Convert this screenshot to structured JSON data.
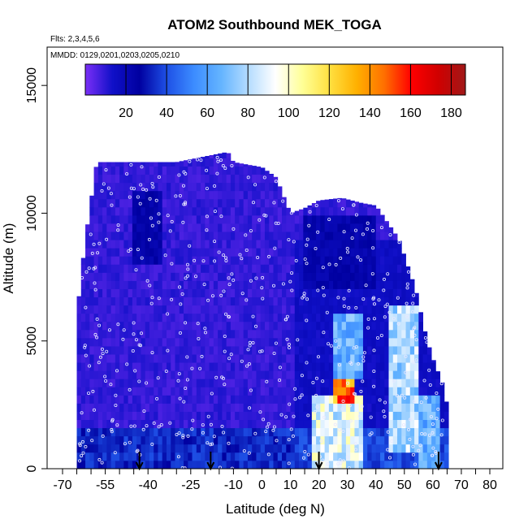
{
  "chart_data": {
    "type": "heatmap",
    "title": "ATOM2 Southbound MEK_TOGA",
    "annotations": {
      "flights": "Flts: 2,3,4,5,6",
      "dates": "MMDD: 0129,0201,0203,0205,0210"
    },
    "xlabel": "Latitude (deg N)",
    "ylabel": "Altitude (m)",
    "xlim": [
      -70,
      80
    ],
    "ylim": [
      0,
      16500
    ],
    "x_ticks_major": [
      -70,
      -55,
      -40,
      -25,
      -10,
      0,
      10,
      20,
      30,
      40,
      50,
      60,
      70,
      80
    ],
    "x_tick_labels": [
      "-70",
      "-55",
      "-40",
      "-25",
      "-10",
      "0",
      "10",
      "20",
      "30",
      "40",
      "50",
      "60",
      "70",
      "80"
    ],
    "x_ticks_minor": [
      -65,
      -60,
      -50,
      -45,
      -35,
      -30,
      -20,
      -15,
      -5,
      5,
      15,
      25,
      35,
      45,
      55,
      65,
      75
    ],
    "y_ticks": [
      0,
      5000,
      10000,
      15000
    ],
    "y_tick_labels": [
      "0",
      "5000",
      "10000",
      "15000"
    ],
    "colorbar": {
      "range": [
        0,
        187
      ],
      "ticks": [
        20,
        40,
        60,
        80,
        100,
        120,
        140,
        160,
        180
      ],
      "tick_labels": [
        "20",
        "40",
        "60",
        "80",
        "100",
        "120",
        "140",
        "160",
        "180"
      ],
      "colors": [
        "#7b2ff7",
        "#1010c8",
        "#0000a0",
        "#1e50e6",
        "#3c8cff",
        "#64b4ff",
        "#b4dcff",
        "#ffffff",
        "#ffff96",
        "#ffe040",
        "#ffb000",
        "#ff7000",
        "#ff0000",
        "#d00000",
        "#a01818"
      ]
    },
    "arrows_latitude": [
      -43,
      -18,
      20,
      62
    ],
    "profile_top_altitude": [
      [
        -65,
        6000
      ],
      [
        -62,
        9000
      ],
      [
        -58,
        12000
      ],
      [
        -50,
        12000
      ],
      [
        -30,
        12000
      ],
      [
        -12,
        12400
      ],
      [
        -10,
        12000
      ],
      [
        0,
        11800
      ],
      [
        5,
        11400
      ],
      [
        10,
        10000
      ],
      [
        15,
        10200
      ],
      [
        20,
        10500
      ],
      [
        28,
        10600
      ],
      [
        35,
        10400
      ],
      [
        40,
        10300
      ],
      [
        48,
        9000
      ],
      [
        54,
        7000
      ],
      [
        58,
        5000
      ],
      [
        61,
        4000
      ],
      [
        63,
        3500
      ],
      [
        65,
        2500
      ]
    ],
    "features": [
      {
        "lat_range": [
          25,
          32
        ],
        "alt_range": [
          2500,
          3500
        ],
        "value": 150
      },
      {
        "lat_range": [
          18,
          35
        ],
        "alt_range": [
          0,
          3000
        ],
        "value": 95
      },
      {
        "lat_range": [
          25,
          35
        ],
        "alt_range": [
          3500,
          6000
        ],
        "value": 70
      },
      {
        "lat_range": [
          45,
          55
        ],
        "alt_range": [
          500,
          6500
        ],
        "value": 85
      },
      {
        "lat_range": [
          55,
          63
        ],
        "alt_range": [
          0,
          3000
        ],
        "value": 70
      },
      {
        "lat_range": [
          -60,
          10
        ],
        "alt_range": [
          0,
          1500
        ],
        "value": 30
      },
      {
        "lat_range": [
          -45,
          -35
        ],
        "alt_range": [
          8000,
          11000
        ],
        "value": 25
      },
      {
        "lat_range": [
          15,
          40
        ],
        "alt_range": [
          7000,
          10000
        ],
        "value": 25
      }
    ]
  }
}
